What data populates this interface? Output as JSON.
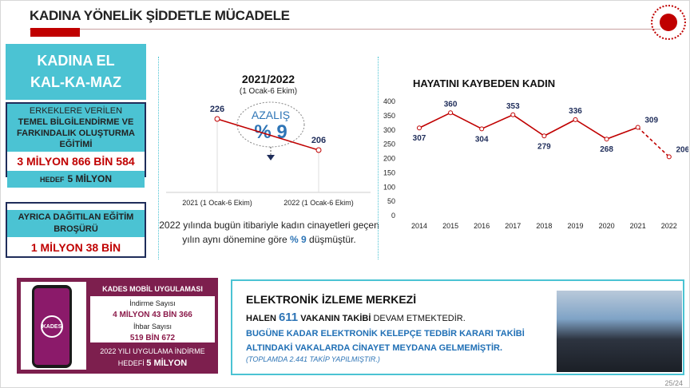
{
  "header": {
    "title": "KADINA YÖNELİK ŞİDDETLE MÜCADELE"
  },
  "left": {
    "campaign": [
      "KADINA EL",
      "KAL-KA-MAZ"
    ],
    "training_title": [
      "ERKEKLERE VERİLEN",
      "TEMEL BİLGİLENDİRME VE",
      "FARKINDALIK OLUŞTURMA",
      "EĞİTİMİ"
    ],
    "training_value": "3 MİLYON 866 BİN 584",
    "target_label": "HEDEF",
    "target_value": "5 MİLYON",
    "brochure_title": [
      "AYRICA DAĞITILAN EĞİTİM",
      "BROŞÜRÜ"
    ],
    "brochure_value": "1 MİLYON 38 BİN"
  },
  "middle": {
    "title": "2021/2022",
    "subtitle": "(1 Ocak-6 Ekim)",
    "badge_label": "AZALIŞ",
    "badge_value": "% 9",
    "desc_before": "2022 yılında bugün itibariyle kadın cinayetleri geçen yılın aynı dönemine göre ",
    "desc_pct": "% 9",
    "desc_after": " düşmüştür."
  },
  "chart_data": [
    {
      "type": "line",
      "title": "",
      "categories": [
        "2021 (1 Ocak-6 Ekim)",
        "2022 (1 Ocak-6 Ekim)"
      ],
      "values": [
        226,
        206
      ]
    },
    {
      "type": "line",
      "title": "HAYATINI KAYBEDEN KADIN",
      "categories": [
        "2014",
        "2015",
        "2016",
        "2017",
        "2018",
        "2019",
        "2020",
        "2021",
        "2022"
      ],
      "values": [
        307,
        360,
        304,
        353,
        279,
        336,
        268,
        309,
        206
      ],
      "ylim": [
        0,
        400
      ],
      "yticks": [
        0,
        50,
        100,
        150,
        200,
        250,
        300,
        350,
        400
      ],
      "color": "#c00000"
    }
  ],
  "kades": {
    "title": "KADES MOBİL UYGULAMASI",
    "dl_label": "İndirme Sayısı",
    "dl_value": "4 MİLYON 43 BİN 366",
    "report_label": "İhbar Sayısı",
    "report_value": "519 BİN 672",
    "target_line": "2022 YILI UYGULAMA İNDİRME",
    "target_label": "HEDEFİ",
    "target_value": "5 MİLYON",
    "app_name": "KADES"
  },
  "eim": {
    "title": "ELEKTRONİK İZLEME MERKEZİ",
    "l1_pre": "HALEN",
    "l1_num": "611",
    "l1_bold": "VAKANIN TAKİBİ",
    "l1_post": "DEVAM ETMEKTEDİR.",
    "l2": "BUGÜNE KADAR ELEKTRONİK KELEPÇE  TEDBİR KARARI TAKİBİ ALTINDAKİ VAKALARDA CİNAYET MEYDANA GELMEMİŞTİR.",
    "l3": "(TOPLAMDA 2.441 TAKİP YAPILMIŞTIR.)"
  },
  "footer": {
    "page": "25/24"
  }
}
